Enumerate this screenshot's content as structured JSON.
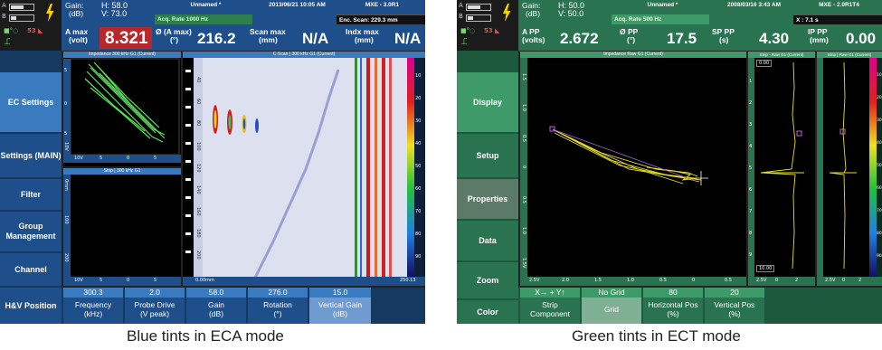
{
  "left": {
    "status": {
      "mode_code": "53",
      "colors": {
        "bar": "#3a7abf",
        "bar_dark": "#1f4f8a",
        "accent": "#c0392b"
      }
    },
    "readouts": {
      "gain_label": "Gain:",
      "gain_unit": "(dB)",
      "gain_h": "H: 58.0",
      "gain_v": "V: 73.0",
      "acq_rate": "Acq. Rate 1000  Hz",
      "file_name": "Unnamed *",
      "datetime": "2013/06/21 10:05 AM",
      "version": "MXE - 3.0R1",
      "enc_scan": "Enc. Scan: 229.3 mm",
      "r1_label": "A max",
      "r1_unit": "(volt)",
      "r1_value": "8.321",
      "r2_label": "Ø (A max)",
      "r2_unit": "(°)",
      "r2_value": "216.2",
      "r3_label": "Scan max",
      "r3_unit": "(mm)",
      "r3_value": "N/A",
      "r4_label": "Indx max",
      "r4_unit": "(mm)",
      "r4_value": "N/A"
    },
    "menu": [
      "EC Settings",
      "Settings (MAIN)",
      "Filter",
      "Group Management",
      "Channel",
      "H&V Position"
    ],
    "panels": {
      "impedance_title": "Impedance 300 kHz G1 (Current)",
      "strip_title": "Strip | 300 kHz G1",
      "cscan_title": "C-Scan | 300 kHz G1 (Current)",
      "imp_ylabel": "10V",
      "strip_ylabel_top": "0mm",
      "strip_ylabel_mid": "100",
      "strip_ylabel_bot": "200",
      "imp_x_labels": [
        "10V",
        "5",
        "0",
        "5"
      ],
      "strip_x_labels": [
        "10V",
        "5",
        "0",
        "5"
      ],
      "cscan_x_start": "0.00mm",
      "cscan_x_end": "250.13",
      "imp_y_labels": [
        "5",
        "0",
        "5"
      ],
      "cscan_y_labels": [
        "40",
        "60",
        "80",
        "100",
        "120",
        "140",
        "160",
        "180",
        "200"
      ],
      "scale_labels": [
        "10",
        "20",
        "30",
        "40",
        "50",
        "60",
        "70",
        "80",
        "90"
      ]
    },
    "params": [
      {
        "value": "300.3",
        "label": "Frequency",
        "unit": "(kHz)"
      },
      {
        "value": "2.0",
        "label": "Probe Drive",
        "unit": "(V peak)"
      },
      {
        "value": "58.0",
        "label": "Gain",
        "unit": "(dB)"
      },
      {
        "value": "276.0",
        "label": "Rotation",
        "unit": "(°)"
      },
      {
        "value": "15.0",
        "label": "Vertical Gain",
        "unit": "(dB)"
      }
    ],
    "caption": "Blue tints in ECA mode"
  },
  "right": {
    "status": {
      "mode_code": "53",
      "colors": {
        "bar": "#3f9a6a",
        "bar_dark": "#2a7350",
        "accent": "#2f8f5e"
      }
    },
    "readouts": {
      "gain_label": "Gain:",
      "gain_unit": "(dB)",
      "gain_h": "H: 50.0",
      "gain_v": "V: 50.0",
      "acq_rate": "Acq. Rate 500  Hz",
      "file_name": "Unnamed *",
      "datetime": "2008/03/16 3:43 AM",
      "version": "MXE - 2.0R1T4",
      "enc_scan": "X : 7.1 s",
      "r1_label": "A PP",
      "r1_unit": "(volts)",
      "r1_value": "2.672",
      "r2_label": "Ø PP",
      "r2_unit": "(°)",
      "r2_value": "17.5",
      "r3_label": "SP PP",
      "r3_unit": "(s)",
      "r3_value": "4.30",
      "r4_label": "IP PP",
      "r4_unit": "(mm)",
      "r4_value": "0.00"
    },
    "menu": [
      "Display",
      "Setup",
      "Properties",
      "Data",
      "Zoom",
      "Color"
    ],
    "panels": {
      "impedance_title": "Impedance Raw G1 (Current)",
      "strip_title": "Strip - Raw G1 (Current)",
      "strip2_title": "Strip | Raw G1 (Current)",
      "imp_y_labels": [
        "1.5",
        "1.0",
        "0.5",
        "0",
        "0.5",
        "1.0",
        "1.5V"
      ],
      "imp_x_labels": [
        "2.5V",
        "2.0",
        "1.5",
        "1.0",
        "0.5",
        "0",
        "0.5"
      ],
      "strip_top": "0.00",
      "strip_bot": "10.00",
      "strip_y_labels": [
        "1",
        "2",
        "3",
        "4",
        "5",
        "6",
        "7",
        "8",
        "9"
      ],
      "strip_x_labels": [
        "2.5V",
        "0",
        "2"
      ],
      "strip2_x_labels": [
        "2.5V",
        "0",
        "2"
      ],
      "scale_labels": [
        "10",
        "20",
        "30",
        "40",
        "50",
        "60",
        "70",
        "80",
        "90"
      ]
    },
    "params": [
      {
        "value": "X→ + Y↑",
        "label": "Strip",
        "unit": "Component"
      },
      {
        "value": "No Grid",
        "label": "Grid",
        "unit": ""
      },
      {
        "value": "80",
        "label": "Horizontal Pos",
        "unit": "(%)"
      },
      {
        "value": "20",
        "label": "Vertical Pos",
        "unit": "(%)"
      }
    ],
    "caption": "Green tints in ECT mode"
  }
}
